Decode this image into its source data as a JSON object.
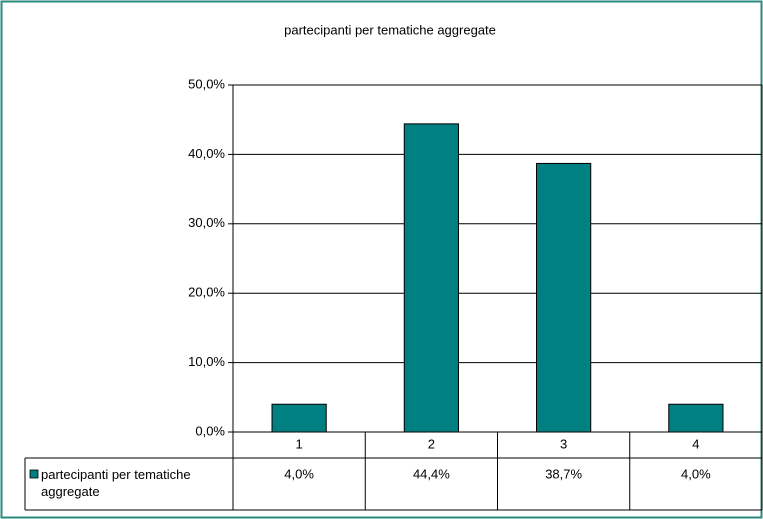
{
  "chart_data": {
    "type": "bar",
    "title": "partecipanti per tematiche aggregate",
    "categories": [
      "1",
      "2",
      "3",
      "4"
    ],
    "series": [
      {
        "name": "partecipanti per tematiche aggregate",
        "color": "#008080",
        "values": [
          4.0,
          44.4,
          38.7,
          4.0
        ],
        "value_labels": [
          "4,0%",
          "44,4%",
          "38,7%",
          "4,0%"
        ]
      }
    ],
    "ylim": [
      0,
      50
    ],
    "yticks": [
      {
        "value": 0,
        "label": "0,0%"
      },
      {
        "value": 10,
        "label": "10,0%"
      },
      {
        "value": 20,
        "label": "20,0%"
      },
      {
        "value": 30,
        "label": "30,0%"
      },
      {
        "value": 40,
        "label": "40,0%"
      },
      {
        "value": 50,
        "label": "50,0%"
      }
    ],
    "grid": true,
    "data_table": true
  }
}
